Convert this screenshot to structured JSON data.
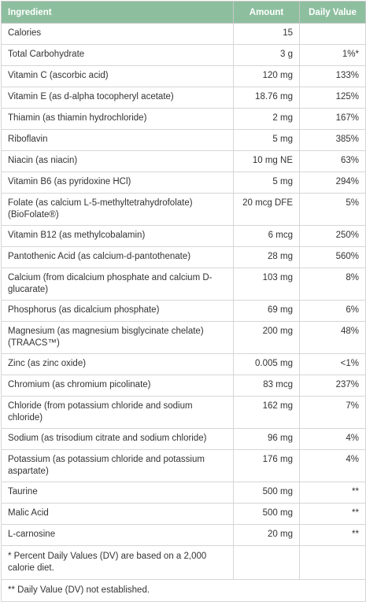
{
  "header": {
    "ingredient": "Ingredient",
    "amount": "Amount",
    "daily_value": "Daily Value"
  },
  "rows": [
    {
      "ingredient": "Calories",
      "amount": "15",
      "dv": ""
    },
    {
      "ingredient": "Total Carbohydrate",
      "amount": "3 g",
      "dv": "1%*"
    },
    {
      "ingredient": "Vitamin C (ascorbic acid)",
      "amount": "120 mg",
      "dv": "133%"
    },
    {
      "ingredient": "Vitamin E (as d-alpha tocopheryl acetate)",
      "amount": "18.76 mg",
      "dv": "125%"
    },
    {
      "ingredient": "Thiamin (as thiamin hydrochloride)",
      "amount": "2 mg",
      "dv": "167%"
    },
    {
      "ingredient": "Riboflavin",
      "amount": "5 mg",
      "dv": "385%"
    },
    {
      "ingredient": "Niacin (as niacin)",
      "amount": "10 mg NE",
      "dv": "63%"
    },
    {
      "ingredient": "Vitamin B6 (as pyridoxine HCl)",
      "amount": "5 mg",
      "dv": "294%"
    },
    {
      "ingredient": "Folate (as calcium L-5-methyltetrahydrofolate) (BioFolate®)",
      "amount": "20 mcg DFE",
      "dv": "5%"
    },
    {
      "ingredient": "Vitamin B12 (as methylcobalamin)",
      "amount": "6 mcg",
      "dv": "250%"
    },
    {
      "ingredient": "Pantothenic Acid (as calcium-d-pantothenate)",
      "amount": "28 mg",
      "dv": "560%"
    },
    {
      "ingredient": "Calcium (from dicalcium phosphate and calcium D-glucarate)",
      "amount": "103 mg",
      "dv": "8%"
    },
    {
      "ingredient": "Phosphorus (as dicalcium phosphate)",
      "amount": "69 mg",
      "dv": "6%"
    },
    {
      "ingredient": "Magnesium (as magnesium bisglycinate chelate) (TRAACS™)",
      "amount": "200 mg",
      "dv": "48%"
    },
    {
      "ingredient": "Zinc (as zinc oxide)",
      "amount": "0.005 mg",
      "dv": "<1%"
    },
    {
      "ingredient": "Chromium (as chromium picolinate)",
      "amount": "83 mcg",
      "dv": "237%"
    },
    {
      "ingredient": "Chloride (from potassium chloride and sodium chloride)",
      "amount": "162 mg",
      "dv": "7%"
    },
    {
      "ingredient": "Sodium (as trisodium citrate and sodium chloride)",
      "amount": "96 mg",
      "dv": "4%"
    },
    {
      "ingredient": "Potassium (as potassium chloride and potassium aspartate)",
      "amount": "176 mg",
      "dv": "4%"
    },
    {
      "ingredient": "Taurine",
      "amount": "500 mg",
      "dv": "**"
    },
    {
      "ingredient": "Malic Acid",
      "amount": "500 mg",
      "dv": "**"
    },
    {
      "ingredient": "L-carnosine",
      "amount": "20 mg",
      "dv": "**"
    }
  ],
  "footnotes": {
    "percent_dv": "* Percent Daily Values (DV) are based on a 2,000 calorie diet.",
    "not_established": "** Daily Value (DV) not established."
  },
  "colors": {
    "header_bg": "#8dbf9f",
    "header_text": "#ffffff",
    "border": "#d6d6d6",
    "text": "#333333"
  }
}
